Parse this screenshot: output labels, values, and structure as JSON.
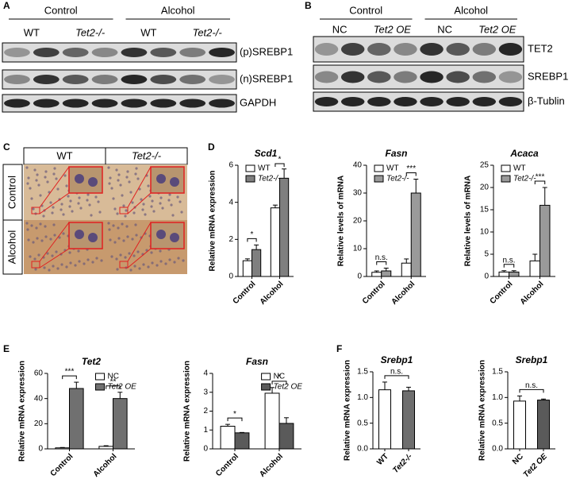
{
  "panel_labels": [
    "A",
    "B",
    "C",
    "D",
    "E",
    "F"
  ],
  "blot_a": {
    "groups": [
      "Control",
      "Alcohol"
    ],
    "lanes": [
      "WT",
      "Tet2-/-",
      "WT",
      "Tet2-/-"
    ],
    "rows": [
      "(p)SREBP1",
      "(n)SREBP1",
      "GAPDH"
    ]
  },
  "blot_b": {
    "groups": [
      "Control",
      "Alcohol"
    ],
    "lanes": [
      "NC",
      "Tet2 OE",
      "NC",
      "Tet2 OE"
    ],
    "rows": [
      "TET2",
      "SREBP1",
      "β-Tublin"
    ]
  },
  "histology": {
    "columns": [
      "WT",
      "Tet2-/-"
    ],
    "rows": [
      "Control",
      "Alcohol"
    ]
  },
  "chart_data": [
    {
      "type": "bar",
      "title": "Scd1",
      "y_label": "Relative mRNA expression",
      "categories": [
        "Control",
        "Alcohol"
      ],
      "series": [
        {
          "name": "WT",
          "color": "#ffffff",
          "values": [
            0.85,
            3.7
          ],
          "errors": [
            0.1,
            0.15
          ]
        },
        {
          "name": "Tet2-/-",
          "color": "#7f7f7f",
          "values": [
            1.45,
            5.3
          ],
          "errors": [
            0.25,
            0.5
          ]
        }
      ],
      "annotations": [
        "*",
        "*"
      ],
      "ylim": [
        0,
        6
      ],
      "yticks": [
        0,
        2,
        4,
        6
      ],
      "legend": "upper left"
    },
    {
      "type": "bar",
      "title": "Fasn",
      "y_label": "Relative levels of mRNA",
      "categories": [
        "Control",
        "Alcohol"
      ],
      "series": [
        {
          "name": "WT",
          "color": "#ffffff",
          "values": [
            1.5,
            4.8
          ],
          "errors": [
            0.5,
            1.5
          ]
        },
        {
          "name": "Tet2-/-",
          "color": "#9a9a9a",
          "values": [
            2,
            30
          ],
          "errors": [
            1,
            5
          ]
        }
      ],
      "annotations": [
        "n.s.",
        "***"
      ],
      "ylim": [
        0,
        40
      ],
      "yticks": [
        0,
        10,
        20,
        30,
        40
      ],
      "legend": "upper left"
    },
    {
      "type": "bar",
      "title": "Acaca",
      "y_label": "Relative levels of mRNA",
      "categories": [
        "Control",
        "Alcohol"
      ],
      "series": [
        {
          "name": "WT",
          "color": "#ffffff",
          "values": [
            1,
            3.5
          ],
          "errors": [
            0.3,
            1.5
          ]
        },
        {
          "name": "Tet2-/-",
          "color": "#9a9a9a",
          "values": [
            1,
            16
          ],
          "errors": [
            0.3,
            4
          ]
        }
      ],
      "annotations": [
        "n.s.",
        "***"
      ],
      "ylim": [
        0,
        25
      ],
      "yticks": [
        0,
        5,
        10,
        15,
        20,
        25
      ],
      "legend": "upper left"
    },
    {
      "type": "bar",
      "title": "Tet2",
      "y_label": "Relative mRNA expression",
      "categories": [
        "Control",
        "Alcohol"
      ],
      "series": [
        {
          "name": "NC",
          "color": "#ffffff",
          "values": [
            0.8,
            2
          ],
          "errors": [
            0.3,
            0.5
          ]
        },
        {
          "name": "Tet2 OE",
          "color": "#707070",
          "values": [
            48,
            40
          ],
          "errors": [
            5,
            5
          ]
        }
      ],
      "annotations": [
        "***",
        "**"
      ],
      "ylim": [
        0,
        60
      ],
      "yticks": [
        0,
        20,
        40,
        60
      ],
      "legend": "upper right"
    },
    {
      "type": "bar",
      "title": "Fasn",
      "y_label": "Relative mRNA expression",
      "categories": [
        "Control",
        "Alcohol"
      ],
      "series": [
        {
          "name": "NC",
          "color": "#ffffff",
          "values": [
            1.2,
            2.95
          ],
          "errors": [
            0.1,
            0.3
          ]
        },
        {
          "name": "Tet2 OE",
          "color": "#5a5a5a",
          "values": [
            0.85,
            1.35
          ],
          "errors": [
            0.02,
            0.3
          ]
        }
      ],
      "annotations": [
        "*",
        "*"
      ],
      "ylim": [
        0,
        4
      ],
      "yticks": [
        0,
        1,
        2,
        3,
        4
      ],
      "legend": "upper right"
    },
    {
      "type": "bar",
      "title": "Srebp1",
      "y_label": "Relative mRNA expression",
      "categories": [
        "WT",
        "Tet2-/-"
      ],
      "values": [
        1.15,
        1.13
      ],
      "errors": [
        0.15,
        0.07
      ],
      "colors": [
        "#ffffff",
        "#6e6e6e"
      ],
      "annotations": [
        "n.s."
      ],
      "ylim": [
        0,
        1.5
      ],
      "yticks": [
        {
          "value": 0,
          "label": "0.0"
        },
        0.5,
        {
          "value": 1,
          "label": "1.0"
        },
        1.5
      ]
    },
    {
      "type": "bar",
      "title": "Srebp1",
      "y_label": "Relative mRNA expression",
      "categories": [
        "NC",
        "Tet2 OE"
      ],
      "values": [
        0.93,
        0.95
      ],
      "errors": [
        0.1,
        0.02
      ],
      "colors": [
        "#ffffff",
        "#5a5a5a"
      ],
      "annotations": [
        "n.s."
      ],
      "ylim": [
        0,
        1.5
      ],
      "yticks": [
        {
          "value": 0,
          "label": "0.0"
        },
        0.5,
        {
          "value": 1,
          "label": "1.0"
        },
        1.5
      ]
    }
  ]
}
